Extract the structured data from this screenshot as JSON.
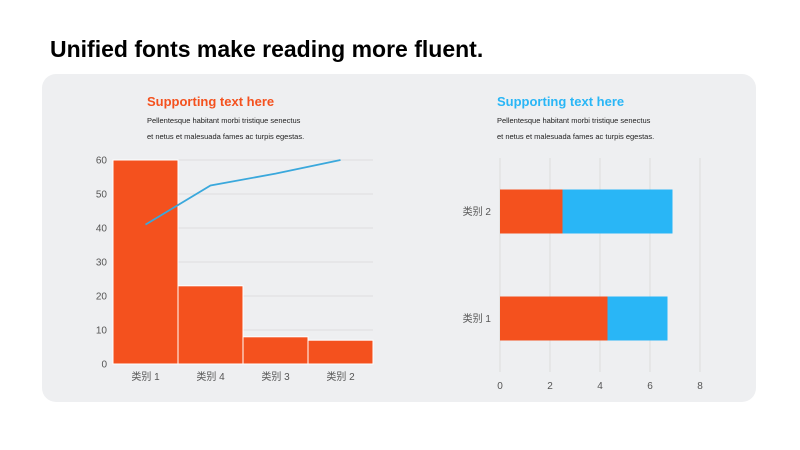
{
  "page": {
    "title": "Unified fonts make reading more fluent."
  },
  "left_text": {
    "heading": "Supporting text here",
    "lines": [
      "Pellentesque habitant morbi tristique senectus",
      "et netus et malesuada fames ac turpis egestas."
    ]
  },
  "right_text": {
    "heading": "Supporting text here",
    "lines": [
      "Pellentesque habitant morbi tristique senectus",
      "et netus et malesuada fames ac turpis egestas."
    ]
  },
  "colors": {
    "orange": "#f4511e",
    "blue": "#29b6f6",
    "line": "#3aa8dc",
    "grid": "#d8d8d8",
    "panel": "#eeeff1"
  },
  "chart_data": [
    {
      "type": "bar",
      "categories": [
        "类别 1",
        "类别 4",
        "类别 3",
        "类别 2"
      ],
      "series": [
        {
          "type": "bar",
          "values": [
            60,
            23,
            8,
            7
          ]
        },
        {
          "type": "line",
          "values": [
            41,
            52.5,
            56,
            60
          ]
        }
      ],
      "ylim": [
        0,
        60
      ],
      "yticks": [
        0,
        10,
        20,
        30,
        40,
        50,
        60
      ],
      "grid": true
    },
    {
      "type": "bar",
      "orientation": "horizontal",
      "stacked": true,
      "categories": [
        "类别 1",
        "类别 2"
      ],
      "series": [
        {
          "values": [
            4.3,
            2.5
          ]
        },
        {
          "values": [
            2.4,
            4.4
          ]
        }
      ],
      "xlim": [
        0,
        8
      ],
      "xticks": [
        0,
        2,
        4,
        6,
        8
      ],
      "grid": true
    }
  ]
}
